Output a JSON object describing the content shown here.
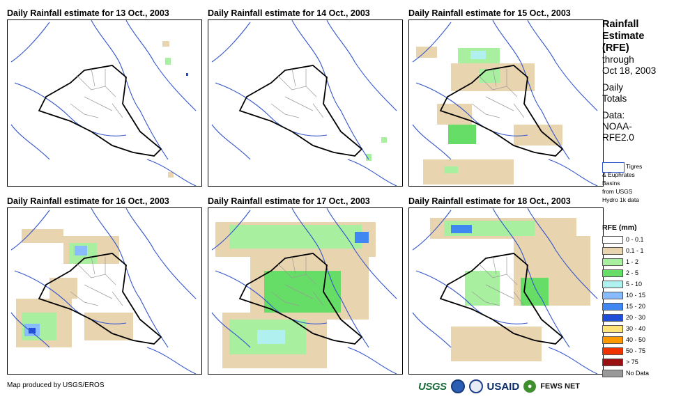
{
  "panels": [
    {
      "title": "Daily Rainfall estimate for 13 Oct., 2003"
    },
    {
      "title": "Daily Rainfall estimate for 14 Oct., 2003"
    },
    {
      "title": "Daily Rainfall estimate for 15 Oct., 2003"
    },
    {
      "title": "Daily Rainfall estimate for 16 Oct., 2003"
    },
    {
      "title": "Daily Rainfall estimate for 17 Oct., 2003"
    },
    {
      "title": "Daily Rainfall estimate for 18 Oct., 2003"
    }
  ],
  "sidebar": {
    "heading_1": "Rainfall",
    "heading_2": "Estimate",
    "heading_3": "(RFE)",
    "through_1": "through",
    "through_2": "Oct 18, 2003",
    "daily_1": "Daily",
    "daily_2": "Totals",
    "data_1": "Data:",
    "data_2": "NOAA-",
    "data_3": "RFE2.0"
  },
  "basin_key": {
    "line_1": "Tigres",
    "line_2": "& Euphrates",
    "line_3": "Basins",
    "line_4": "from USGS",
    "line_5": "Hydro 1k data"
  },
  "legend": {
    "title": "RFE (mm)",
    "items": [
      {
        "label": "0 - 0.1",
        "color": "#ffffff"
      },
      {
        "label": "0.1 - 1",
        "color": "#e8d4ae"
      },
      {
        "label": "1 - 2",
        "color": "#a8f0a0"
      },
      {
        "label": "2 - 5",
        "color": "#66dd66"
      },
      {
        "label": "5 - 10",
        "color": "#b0f0ee"
      },
      {
        "label": "10 - 15",
        "color": "#88bbff"
      },
      {
        "label": "15 - 20",
        "color": "#3f88f2"
      },
      {
        "label": "20 - 30",
        "color": "#1f4fd9"
      },
      {
        "label": "30 - 40",
        "color": "#ffe27a"
      },
      {
        "label": "40 - 50",
        "color": "#ff9900"
      },
      {
        "label": "50 - 75",
        "color": "#ee3300"
      },
      {
        "label": "> 75",
        "color": "#991111"
      },
      {
        "label": "No Data",
        "color": "#999999"
      }
    ]
  },
  "credit": "Map produced by USGS/EROS",
  "logos": {
    "usgs": "USGS",
    "usaid": "USAID",
    "fews": "FEWS NET"
  },
  "colors": {
    "country_border": "#000000",
    "river": "#3355cc",
    "admin": "#999999"
  }
}
